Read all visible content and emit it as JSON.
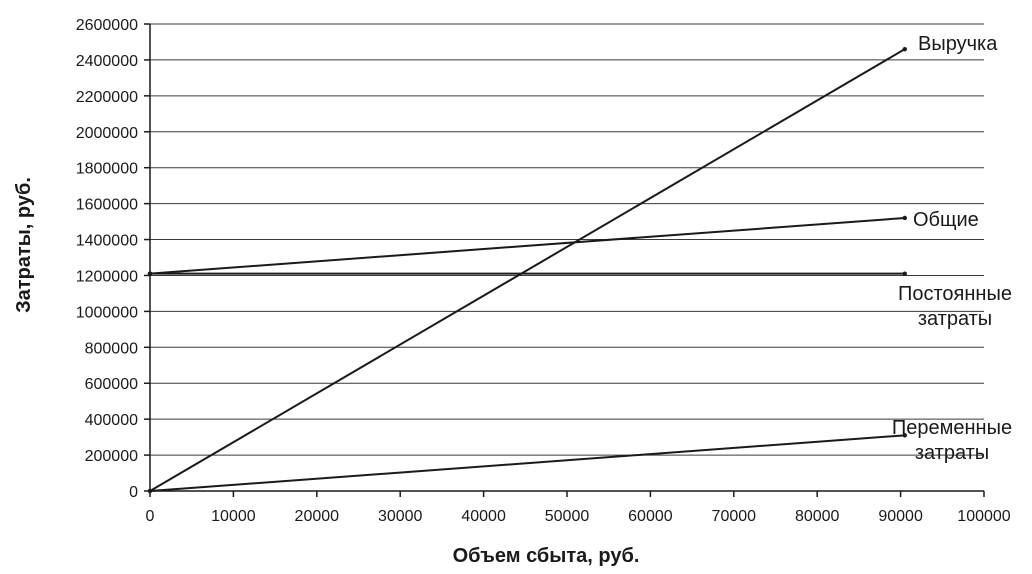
{
  "chart_data": {
    "type": "line",
    "xlabel": "Объем сбыта, руб.",
    "ylabel": "Затраты, руб.",
    "xlim": [
      0,
      100000
    ],
    "ylim": [
      0,
      2600000
    ],
    "x_ticks": [
      "0",
      "10000",
      "20000",
      "30000",
      "40000",
      "50000",
      "60000",
      "70000",
      "80000",
      "90000",
      "100000"
    ],
    "y_ticks": [
      "0",
      "200000",
      "400000",
      "600000",
      "800000",
      "1000000",
      "1200000",
      "1400000",
      "1600000",
      "1800000",
      "2000000",
      "2200000",
      "2400000",
      "2600000"
    ],
    "grid": "horizontal",
    "series": [
      {
        "name": "Выручка",
        "x": [
          0,
          90500
        ],
        "y": [
          0,
          2460000
        ]
      },
      {
        "name": "Общие",
        "x": [
          0,
          90500
        ],
        "y": [
          1210000,
          1520000
        ]
      },
      {
        "name": "Постоянные затраты",
        "x": [
          0,
          90500
        ],
        "y": [
          1210000,
          1210000
        ]
      },
      {
        "name": "Переменные затраты",
        "x": [
          0,
          90500
        ],
        "y": [
          0,
          310000
        ]
      }
    ]
  }
}
